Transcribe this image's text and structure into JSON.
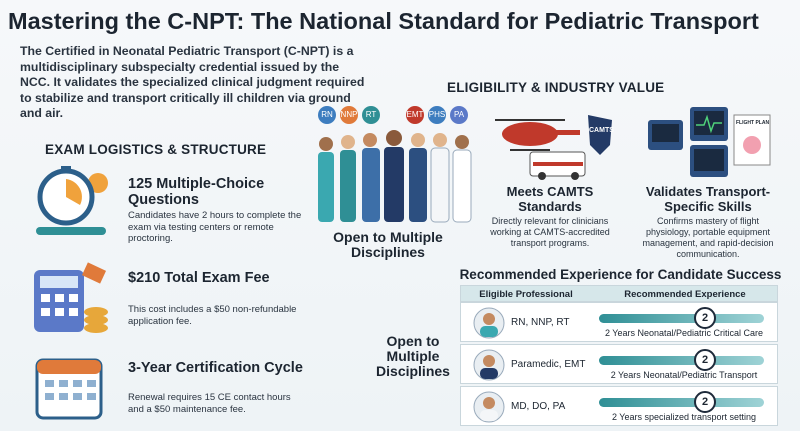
{
  "header": {
    "title": "Mastering the C-NPT: The National Standard for Pediatric Transport",
    "intro": "The Certified in Neonatal Pediatric Transport (C-NPT) is a multidisciplinary subspecialty credential issued by the NCC. It validates the specialized clinical judgment required to stabilize and transport critically ill children via ground and air."
  },
  "exam": {
    "heading": "EXAM LOGISTICS & STRUCTURE",
    "items": [
      {
        "title": "125 Multiple-Choice Questions",
        "text": "Candidates have 2 hours to complete the exam via testing centers or remote proctoring."
      },
      {
        "title": "$210 Total Exam Fee",
        "text": "This cost includes a $50 non-refundable application fee."
      },
      {
        "title": "3-Year Certification Cycle",
        "text": "Renewal requires 15 CE contact hours and a $50 maintenance fee."
      }
    ]
  },
  "eligibility": {
    "heading": "ELIGIBILITY & INDUSTRY VALUE",
    "badges": [
      "RN",
      "NNP",
      "RT",
      "EMT",
      "PHS",
      "PA"
    ],
    "camts_badge": "CAMTS",
    "flight_plan": "FLIGHT PLAN",
    "cards": [
      {
        "title": "Open to Multiple Disciplines"
      },
      {
        "title": "Meets CAMTS Standards",
        "text": "Directly relevant for clinicians working at CAMTS-accredited transport programs."
      },
      {
        "title": "Validates Transport-Specific Skills",
        "text": "Confirms mastery of flight physiology, portable equipment management, and rapid-decision communication."
      }
    ]
  },
  "experience": {
    "title": "Recommended Experience for Candidate Success",
    "side_label": "Open to Multiple Disciplines",
    "table": {
      "headers": [
        "Eligible Professional",
        "Recommended Experience"
      ],
      "rows": [
        {
          "professional": "RN, NNP, RT",
          "years": 2,
          "experience": "2 Years Neonatal/Pediatric Critical Care"
        },
        {
          "professional": "Paramedic, EMT",
          "years": 2,
          "experience": "2 Years Neonatal/Pediatric Transport"
        },
        {
          "professional": "MD, DO, PA",
          "years": 2,
          "experience": "2 Years specialized transport setting"
        }
      ]
    }
  }
}
